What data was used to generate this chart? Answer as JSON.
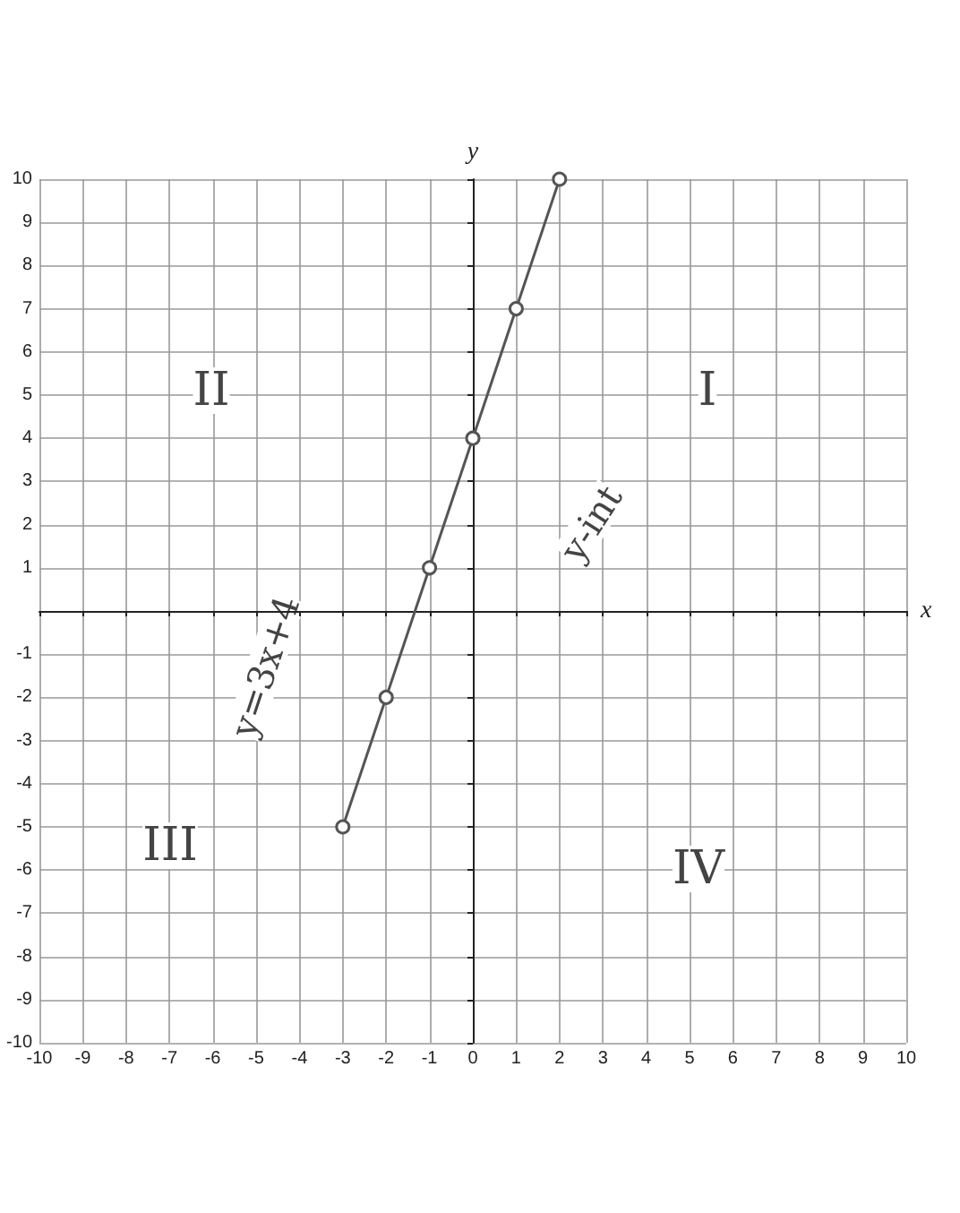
{
  "chart_data": {
    "type": "line",
    "xlabel": "x",
    "ylabel": "y",
    "x": [
      -3,
      -2,
      -1,
      0,
      1,
      2
    ],
    "series": [
      {
        "color": "#555555",
        "values": [
          -5,
          -2,
          1,
          4,
          7,
          10
        ]
      }
    ],
    "marker": "circle",
    "line_style": "solid",
    "grid": true,
    "xlim": [
      -10,
      10
    ],
    "ylim": [
      -10,
      10
    ],
    "xticks": [
      -10,
      -9,
      -8,
      -7,
      -6,
      -5,
      -4,
      -3,
      -2,
      -1,
      0,
      1,
      2,
      3,
      4,
      5,
      6,
      7,
      8,
      9,
      10
    ],
    "yticks": [
      -10,
      -9,
      -8,
      -7,
      -6,
      -5,
      -4,
      -3,
      -2,
      -1,
      {
        "value": 0,
        "label": null
      },
      1,
      2,
      3,
      4,
      5,
      6,
      7,
      8,
      9,
      10
    ],
    "annotations": [
      "y=3x+4",
      "y-int",
      "I",
      "II",
      "III",
      "IV"
    ]
  }
}
